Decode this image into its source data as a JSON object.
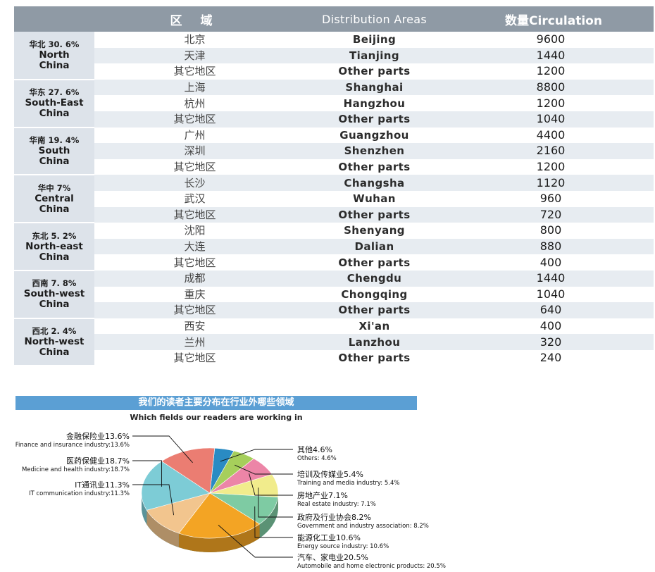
{
  "table": {
    "headers": {
      "zone": "区 域",
      "areas": "Distribution Areas",
      "circulation": "数量Circulation"
    },
    "regions": [
      {
        "cn": "华北 30. 6%",
        "en1": "North",
        "en2": "China",
        "rows": [
          {
            "city": "北京",
            "en": "Beijing",
            "num": "9600"
          },
          {
            "city": "天津",
            "en": "Tianjing",
            "num": "1440"
          },
          {
            "city": "其它地区",
            "en": "Other parts",
            "num": "1200"
          }
        ]
      },
      {
        "cn": "华东 27. 6%",
        "en1": "South-East",
        "en2": "China",
        "rows": [
          {
            "city": "上海",
            "en": "Shanghai",
            "num": "8800"
          },
          {
            "city": "杭州",
            "en": "Hangzhou",
            "num": "1200"
          },
          {
            "city": "其它地区",
            "en": "Other parts",
            "num": "1040"
          }
        ]
      },
      {
        "cn": "华南 19. 4%",
        "en1": "South",
        "en2": "China",
        "rows": [
          {
            "city": "广州",
            "en": "Guangzhou",
            "num": "4400"
          },
          {
            "city": "深圳",
            "en": "Shenzhen",
            "num": "2160"
          },
          {
            "city": "其它地区",
            "en": "Other parts",
            "num": "1200"
          }
        ]
      },
      {
        "cn": "华中 7%",
        "en1": "Central",
        "en2": "China",
        "rows": [
          {
            "city": "长沙",
            "en": "Changsha",
            "num": "1120"
          },
          {
            "city": "武汉",
            "en": "Wuhan",
            "num": "960"
          },
          {
            "city": "其它地区",
            "en": "Other parts",
            "num": "720"
          }
        ]
      },
      {
        "cn": "东北 5. 2%",
        "en1": "North-east",
        "en2": "China",
        "rows": [
          {
            "city": "沈阳",
            "en": "Shenyang",
            "num": "800"
          },
          {
            "city": "大连",
            "en": "Dalian",
            "num": "880"
          },
          {
            "city": "其它地区",
            "en": "Other parts",
            "num": "400"
          }
        ]
      },
      {
        "cn": "西南 7. 8%",
        "en1": "South-west",
        "en2": "China",
        "rows": [
          {
            "city": "成都",
            "en": "Chengdu",
            "num": "1440"
          },
          {
            "city": "重庆",
            "en": "Chongqing",
            "num": "1040"
          },
          {
            "city": "其它地区",
            "en": "Other parts",
            "num": "640"
          }
        ]
      },
      {
        "cn": "西北 2. 4%",
        "en1": "North-west",
        "en2": "China",
        "rows": [
          {
            "city": "西安",
            "en": "Xi'an",
            "num": "400"
          },
          {
            "city": "兰州",
            "en": "Lanzhou",
            "num": "320"
          },
          {
            "city": "其它地区",
            "en": "Other parts",
            "num": "240"
          }
        ]
      }
    ]
  },
  "chart_data": {
    "type": "pie",
    "title": "我们的读者主要分布在行业外哪些领域",
    "subtitle": "Which fields our readers are working in",
    "slices": [
      {
        "cn": "其他4.6%",
        "en": "Others: 4.6%",
        "value": 4.6,
        "color": "#2a8bc3",
        "side": "right"
      },
      {
        "cn": "培训及传媒业5.4%",
        "en": "Training and media industry: 5.4%",
        "value": 5.4,
        "color": "#a6cf5b",
        "side": "right"
      },
      {
        "cn": "房地产业7.1%",
        "en": "Real estate industry: 7.1%",
        "value": 7.1,
        "color": "#ec85a7",
        "side": "right"
      },
      {
        "cn": "政府及行业协会8.2%",
        "en": "Government and industry association: 8.2%",
        "value": 8.2,
        "color": "#f1ec8c",
        "side": "right"
      },
      {
        "cn": "能源化工业10.6%",
        "en": "Energy source industry: 10.6%",
        "value": 10.6,
        "color": "#7ecba3",
        "side": "right"
      },
      {
        "cn": "汽车、家电业20.5%",
        "en": "Automobile and home electronic products: 20.5%",
        "value": 20.5,
        "color": "#f3a424",
        "side": "right"
      },
      {
        "cn": "IT通讯业11.3%",
        "en": "IT communication industry:11.3%",
        "value": 11.3,
        "color": "#f2c58e",
        "side": "left"
      },
      {
        "cn": "医药保健业18.7%",
        "en": "Medicine and health industry:18.7%",
        "value": 18.7,
        "color": "#7dccd6",
        "side": "left"
      },
      {
        "cn": "金融保险业13.6%",
        "en": "Finance and insurance industry:13.6%",
        "value": 13.6,
        "color": "#eb7d72",
        "side": "left"
      }
    ],
    "legend": "none"
  }
}
